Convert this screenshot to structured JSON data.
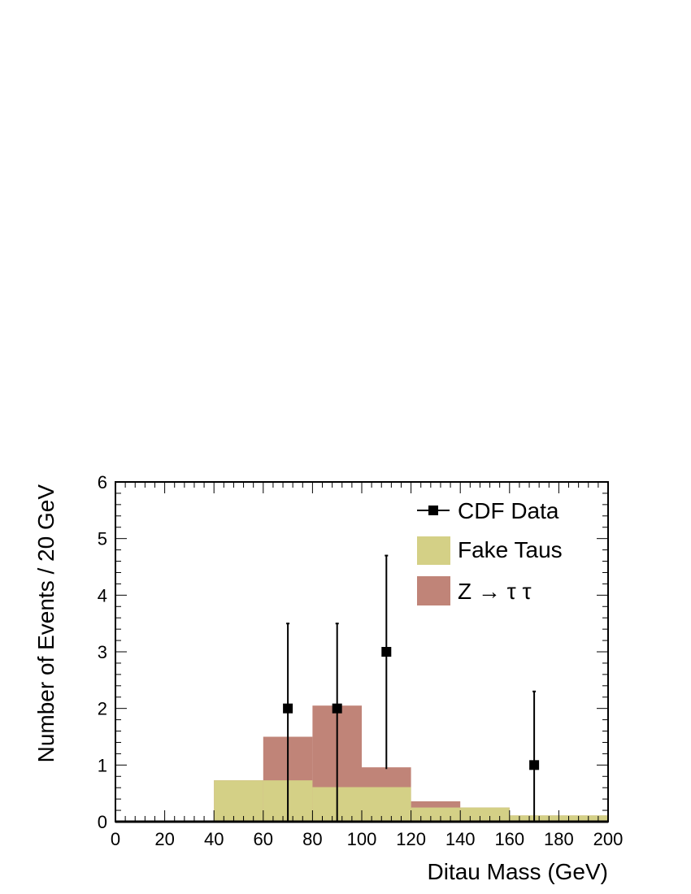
{
  "chart_data": {
    "type": "bar",
    "title": "",
    "xlabel": "Ditau Mass (GeV)",
    "ylabel": "Number of Events / 20 GeV",
    "xlim": [
      0,
      200
    ],
    "ylim": [
      0,
      6
    ],
    "x_ticks": [
      "0",
      "20",
      "40",
      "60",
      "80",
      "100",
      "120",
      "140",
      "160",
      "180",
      "200"
    ],
    "y_ticks": [
      "0",
      "1",
      "2",
      "3",
      "4",
      "5",
      "6"
    ],
    "grid": false,
    "legend_position": "top-right",
    "bin_edges": [
      0,
      20,
      40,
      60,
      80,
      100,
      120,
      140,
      160,
      180,
      200
    ],
    "series": [
      {
        "name": "Fake Taus",
        "kind": "histogram",
        "color": "#d4d086",
        "values": [
          0.02,
          0.02,
          0.73,
          0.73,
          0.61,
          0.61,
          0.25,
          0.25,
          0.11,
          0.11
        ]
      },
      {
        "name": "Z → τ τ",
        "kind": "histogram-stacked-total",
        "color": "#c08478",
        "values": [
          0.02,
          0.02,
          0.73,
          1.5,
          2.05,
          0.96,
          0.36,
          0.25,
          0.11,
          0.11
        ]
      },
      {
        "name": "CDF Data",
        "kind": "points-with-errors",
        "color": "#000000",
        "points": [
          {
            "x": 70,
            "y": 2,
            "err_low": 2,
            "err_high": 1.5
          },
          {
            "x": 90,
            "y": 2,
            "err_low": 2,
            "err_high": 1.5
          },
          {
            "x": 110,
            "y": 3,
            "err_low": 2.07,
            "err_high": 1.7
          },
          {
            "x": 170,
            "y": 1,
            "err_low": 1,
            "err_high": 1.3
          }
        ]
      }
    ]
  }
}
